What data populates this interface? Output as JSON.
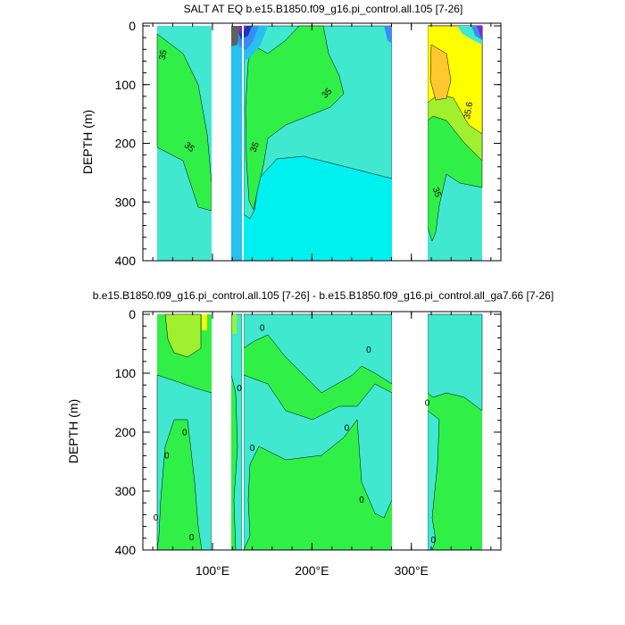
{
  "chart_data": [
    {
      "type": "contour",
      "title": "SALT AT EQ b.e15.B1850.f09_g16.pi_control.all.105 [7-26]",
      "ylabel": "DEPTH (m)",
      "xlabel": "",
      "xlim": [
        30,
        390
      ],
      "ylim": [
        400,
        0
      ],
      "yticks": [
        0,
        100,
        200,
        300,
        400
      ],
      "xticks": [
        100,
        200,
        300
      ],
      "contour_labels": [
        {
          "text": "35",
          "x": 53,
          "y": 50,
          "angle": -80
        },
        {
          "text": "35",
          "x": 75,
          "y": 210,
          "angle": 40
        },
        {
          "text": "35",
          "x": 217,
          "y": 118,
          "angle": -45
        },
        {
          "text": "35",
          "x": 145,
          "y": 208,
          "angle": -70
        },
        {
          "text": "35",
          "x": 323,
          "y": 285,
          "angle": 70
        },
        {
          "text": "35.6",
          "x": 360,
          "y": 145,
          "angle": -80
        }
      ]
    },
    {
      "type": "contour",
      "title": "b.e15.B1850.f09_g16.pi_control.all.105 [7-26] - b.e15.B1850.f09_g16.pi_control.all_ga7.66 [7-26]",
      "ylabel": "DEPTH (m)",
      "xlabel": "",
      "xlim": [
        30,
        390
      ],
      "ylim": [
        400,
        0
      ],
      "yticks": [
        0,
        100,
        200,
        300,
        400
      ],
      "xticks": [
        100,
        200,
        300
      ],
      "xtick_labels": [
        "100°E",
        "200°E",
        "300°E"
      ],
      "contour_labels": [
        {
          "text": "0",
          "x": 150,
          "y": 28,
          "angle": 0
        },
        {
          "text": "0",
          "x": 257,
          "y": 65,
          "angle": 0
        },
        {
          "text": "0",
          "x": 127,
          "y": 130,
          "angle": 0
        },
        {
          "text": "0",
          "x": 316,
          "y": 155,
          "angle": 0
        },
        {
          "text": "0",
          "x": 72,
          "y": 205,
          "angle": 0
        },
        {
          "text": "0",
          "x": 54,
          "y": 245,
          "angle": 0
        },
        {
          "text": "0",
          "x": 140,
          "y": 232,
          "angle": 0
        },
        {
          "text": "0",
          "x": 235,
          "y": 198,
          "angle": 0
        },
        {
          "text": "0",
          "x": 250,
          "y": 320,
          "angle": 0
        },
        {
          "text": "0",
          "x": 43,
          "y": 350,
          "angle": 0
        },
        {
          "text": "0",
          "x": 79,
          "y": 383,
          "angle": 0
        },
        {
          "text": "0",
          "x": 322,
          "y": 388,
          "angle": 0
        }
      ]
    }
  ],
  "colors": {
    "turquoise": "#40e8d0",
    "cyan": "#00f0f0",
    "green": "#30f048",
    "lightgreen": "#a0f030",
    "yellow": "#ffff00",
    "gold": "#ffc830",
    "skyblue": "#28c0f0",
    "blue": "#3c8cf0",
    "darkblue": "#1838b8",
    "purple": "#7a2cd0",
    "gray": "#606060"
  }
}
